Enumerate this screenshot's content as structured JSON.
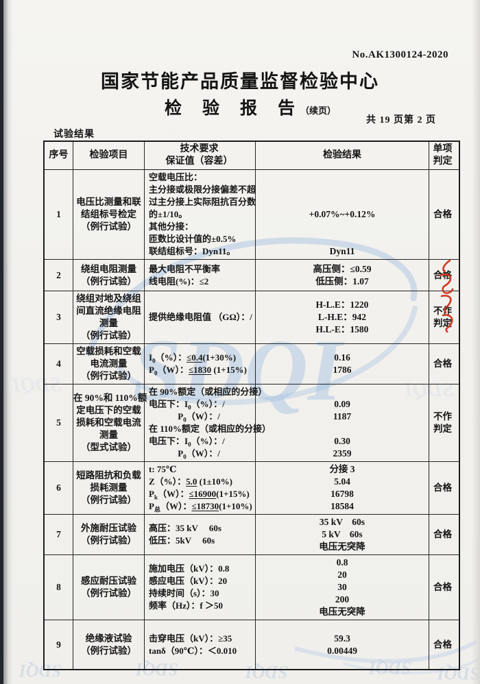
{
  "page": {
    "report_no": "No.AK1300124-2020",
    "org_title": "国家节能产品质量监督检验中心",
    "report_title": "检验报告",
    "report_subtitle": "（续页）",
    "page_info": "共 19 页第 2 页",
    "section_label": "试验结果"
  },
  "watermark": {
    "letters": "SDQI"
  },
  "table": {
    "headers": {
      "no": [
        "序号"
      ],
      "item": [
        "检验项目"
      ],
      "req": [
        "技术要求",
        "保证值（容差）"
      ],
      "result": [
        "检验结果"
      ],
      "verdict": [
        "单项",
        "判定"
      ]
    },
    "rows": [
      {
        "no": "1",
        "item": [
          "电压比测量和联",
          "结组标号检定",
          "（例行试验）"
        ],
        "req": [
          "空载电压比：",
          "主分接或极限分接偏差不超",
          "过主分接上实际阻抗百分数",
          "的±1/10。",
          "其他分接：",
          "匝数比设计值的±0.5%",
          "联结组标号：Dyn11。"
        ],
        "result": [
          "",
          "",
          "",
          "+0.07%~+0.12%",
          "",
          "",
          "Dyn11"
        ],
        "verdict": [
          "合格"
        ]
      },
      {
        "no": "2",
        "item": [
          "绕组电阻测量",
          "（例行试验）"
        ],
        "req": [
          "最大电阻不平衡率",
          "线电阻(%)：≤2"
        ],
        "result": [
          "高压侧：≤0.59",
          "低压侧：1.07"
        ],
        "verdict": [
          "合格"
        ]
      },
      {
        "no": "3",
        "item": [
          "绕组对地及绕组",
          "间直流绝缘电阻",
          "测量",
          "（例行试验）"
        ],
        "req": [
          "提供绝缘电阻值 （GΩ）：/"
        ],
        "result": [
          "H-L.E：1220",
          "L-H.E：942",
          "H.L-E：1580"
        ],
        "verdict": [
          "不作",
          "判定"
        ]
      },
      {
        "no": "4",
        "item": [
          "空载损耗和空载",
          "电流测量",
          "（例行试验）"
        ],
        "req": [
          [
            "I",
            {
              "t": "0",
              "sub": true
            },
            "（%）：",
            {
              "t": "≤0.4",
              "u": true
            },
            "(1+30%)"
          ],
          [
            "P",
            {
              "t": "0",
              "sub": true
            },
            "（W）：",
            {
              "t": "≤1830",
              "u": true
            },
            " (1+15%)"
          ]
        ],
        "result": [
          "0.16",
          "1786"
        ],
        "verdict": [
          "合格"
        ]
      },
      {
        "no": "5",
        "item": [
          "在 90%和 110%额",
          "定电压下的空载",
          "损耗和空载电流",
          "测量",
          "（型式试验）"
        ],
        "req": [
          "在 90%额定（或相应的分接）",
          [
            "电压下：I",
            {
              "t": "0",
              "sub": true
            },
            "（%）：/"
          ],
          [
            "　　　 P",
            {
              "t": "0",
              "sub": true
            },
            "（W）：/"
          ],
          "在 110%额定（或相应的分接）",
          [
            "电压下：I",
            {
              "t": "0",
              "sub": true
            },
            "（%）：/"
          ],
          [
            "　　　 P",
            {
              "t": "0",
              "sub": true
            },
            "（W）：/"
          ]
        ],
        "result": [
          "",
          "0.09",
          "1187",
          "",
          "0.30",
          "2359"
        ],
        "verdict": [
          "不作",
          "判定"
        ]
      },
      {
        "no": "6",
        "item": [
          "短路阻抗和负载",
          "损耗测量",
          "（例行试验）"
        ],
        "req": [
          "t: 75℃",
          [
            "Z（%）：",
            {
              "t": "5.0",
              "u": true
            },
            " (1±10%)"
          ],
          [
            "P",
            {
              "t": "k",
              "sub": true
            },
            "（W）：",
            {
              "t": "≤16900",
              "u": true
            },
            "(1+15%)"
          ],
          [
            "P",
            {
              "t": "总",
              "sub": true
            },
            "（W）：",
            {
              "t": "≤18730",
              "u": true
            },
            "(1+10%)"
          ]
        ],
        "result": [
          "分接 3",
          "5.04",
          "16798",
          "18584"
        ],
        "verdict": [
          "合格"
        ]
      },
      {
        "no": "7",
        "item": [
          "外施耐压试验",
          "（例行试验）"
        ],
        "req": [
          "高压：35 kV　 60s",
          "低压：5kV　 60s"
        ],
        "result": [
          "35 kV　60s",
          "5 kV　60s",
          "电压无突降"
        ],
        "verdict": [
          "合格"
        ]
      },
      {
        "no": "8",
        "item": [
          "感应耐压试验",
          "（例行试验）"
        ],
        "req": [
          "施加电压（kV）：0.8",
          "感应电压（kV）：20",
          "持续时间（s）：30",
          "频率（Hz）：f ＞50"
        ],
        "result": [
          "0.8",
          "20",
          "30",
          "200",
          "电压无突降"
        ],
        "verdict": [
          "合格"
        ]
      },
      {
        "no": "9",
        "item": [
          "绝缘液试验",
          "（例行试验）"
        ],
        "req": [
          "击穿电压（kV）：≥35",
          "tanδ（90℃）：＜0.010"
        ],
        "result": [
          "59.3",
          "0.00449"
        ],
        "verdict": [
          "合格"
        ]
      }
    ]
  }
}
